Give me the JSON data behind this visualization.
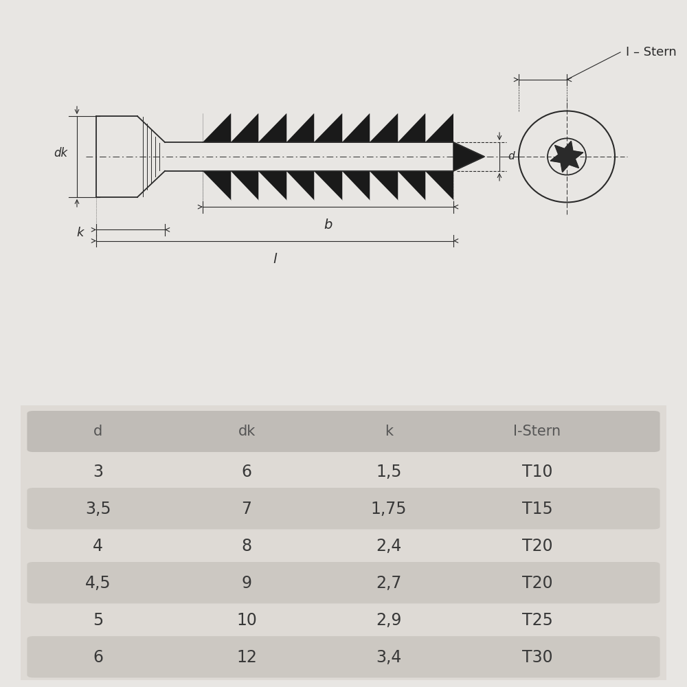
{
  "background_color": "#e8e6e3",
  "table_bg": "#dedad5",
  "table_header_bg": "#c0bcb7",
  "table_row_alt_bg": "#ccc8c2",
  "drawing_color": "#2a2a2a",
  "headers": [
    "d",
    "dk",
    "k",
    "I-Stern"
  ],
  "rows": [
    [
      "3",
      "6",
      "1,5",
      "T10"
    ],
    [
      "3,5",
      "7",
      "1,75",
      "T15"
    ],
    [
      "4",
      "8",
      "2,4",
      "T20"
    ],
    [
      "4,5",
      "9",
      "2,7",
      "T20"
    ],
    [
      "5",
      "10",
      "2,9",
      "T25"
    ],
    [
      "6",
      "12",
      "3,4",
      "T30"
    ]
  ],
  "label_dk": "dk",
  "label_k": "k",
  "label_b": "b",
  "label_l": "l",
  "label_d": "d",
  "label_istern": "I – Stern"
}
